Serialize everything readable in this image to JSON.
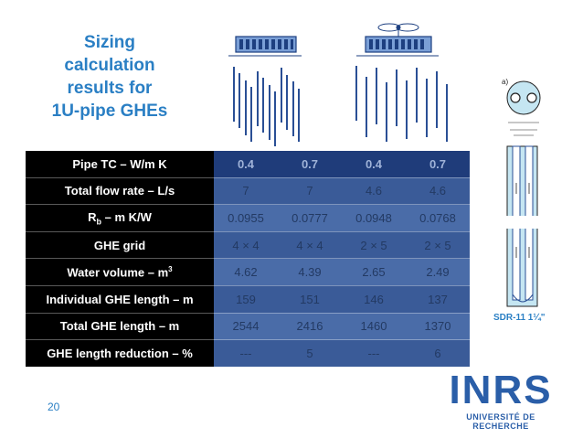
{
  "title": {
    "line1": "Sizing",
    "line2": "calculation",
    "line3": "results for",
    "line4": "1U-pipe GHEs"
  },
  "table": {
    "rows": [
      {
        "label": "Pipe TC – W/m K",
        "values": [
          "0.4",
          "0.7",
          "0.4",
          "0.7"
        ]
      },
      {
        "label": "Total flow rate – L/s",
        "values": [
          "7",
          "7",
          "4.6",
          "4.6"
        ]
      },
      {
        "label_main": "R",
        "label_sub": "b",
        "label_rest": " – m K/W",
        "values": [
          "0.0955",
          "0.0777",
          "0.0948",
          "0.0768"
        ]
      },
      {
        "label": "GHE grid",
        "values": [
          "4 × 4",
          "4 × 4",
          "2 × 5",
          "2 × 5"
        ]
      },
      {
        "label_main": "Water volume – m",
        "label_sup": "3",
        "values": [
          "4.62",
          "4.39",
          "2.65",
          "2.49"
        ]
      },
      {
        "label": "Individual GHE length – m",
        "values": [
          "159",
          "151",
          "146",
          "137"
        ]
      },
      {
        "label": "Total GHE length – m",
        "values": [
          "2544",
          "2416",
          "1460",
          "1370"
        ]
      },
      {
        "label": "GHE length reduction – %",
        "values": [
          "---",
          "5",
          "---",
          "6"
        ]
      }
    ]
  },
  "diagram": {
    "part_label": "a)",
    "pipe_label": "SDR-11 1¼\""
  },
  "page_number": "20",
  "logo": {
    "name": "INRS",
    "subtitle": "UNIVERSITÉ DE RECHERCHE"
  },
  "colors": {
    "accent": "#2a7fc4",
    "label_bg": "#000000",
    "cell_dark": "#1f3c7a",
    "cell": "#3a5b98",
    "logo": "#2a5ea8"
  },
  "icons": [
    "building-icon",
    "building-with-fan-icon",
    "borehole-cross-section-icon",
    "u-pipe-borehole-icon"
  ]
}
